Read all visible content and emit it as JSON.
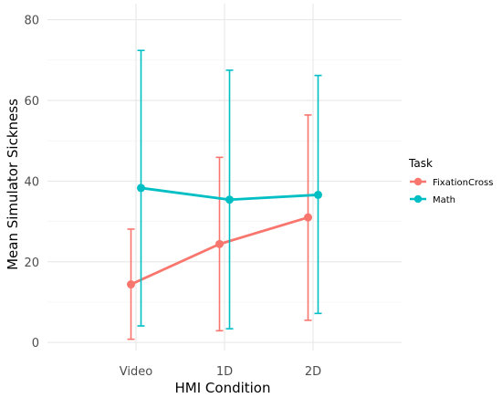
{
  "chart_data": {
    "type": "line",
    "xlabel": "HMI Condition",
    "ylabel": "Mean Simulator Sickness",
    "categories": [
      "Video",
      "1D",
      "2D"
    ],
    "ylim": [
      -2,
      84
    ],
    "yticks": [
      0,
      20,
      40,
      60,
      80
    ],
    "grid": true,
    "legend": {
      "title": "Task",
      "position": "right"
    },
    "series": [
      {
        "name": "FixationCross",
        "color": "#F8766D",
        "values": [
          14.4,
          24.4,
          31.0
        ],
        "error_low": [
          0.8,
          2.9,
          5.5
        ],
        "error_high": [
          28.1,
          45.9,
          56.4
        ]
      },
      {
        "name": "Math",
        "color": "#00BFC4",
        "values": [
          38.3,
          35.4,
          36.6
        ],
        "error_low": [
          4.1,
          3.4,
          7.2
        ],
        "error_high": [
          72.4,
          67.5,
          66.2
        ]
      }
    ]
  }
}
